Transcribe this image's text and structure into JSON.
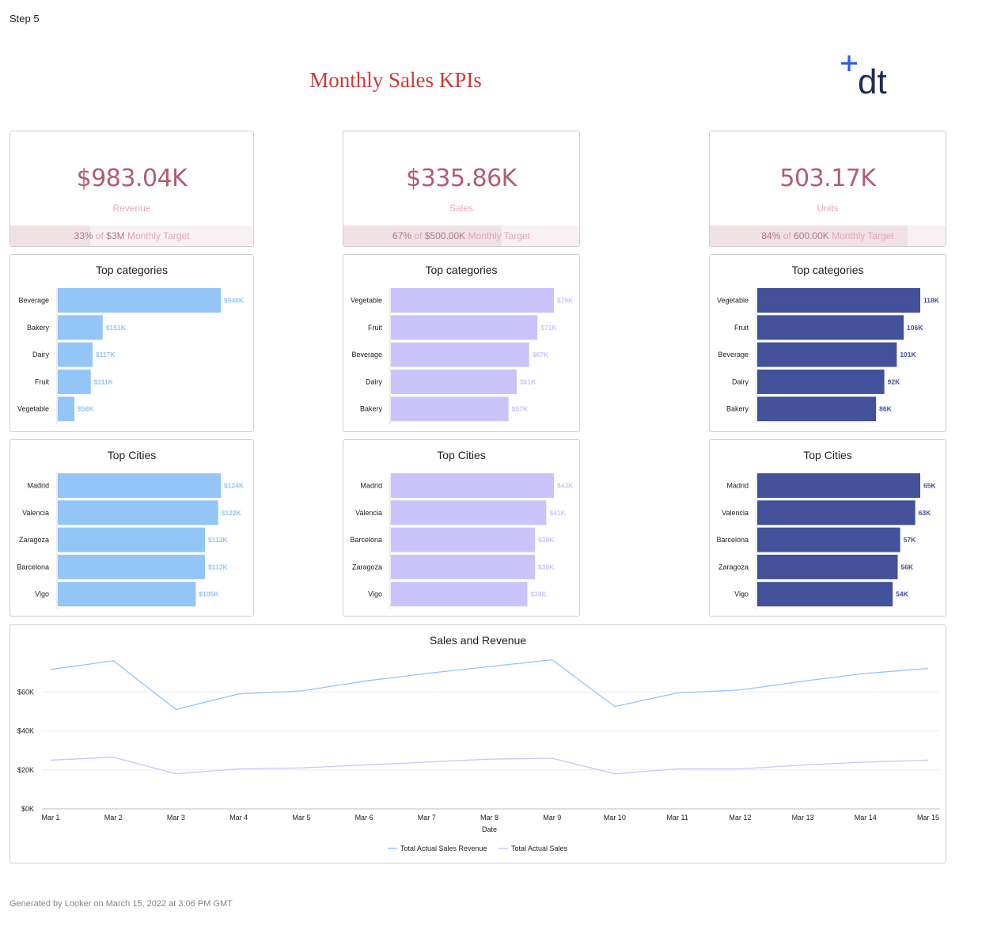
{
  "step": "Step 5",
  "title": "Monthly Sales KPIs",
  "logo_text": "dt",
  "colors": {
    "revenue": "#94c5f7",
    "sales": "#cbc4fb",
    "units": "#43519a",
    "kpi_value": "#b05d72",
    "title": "#cc3b3b"
  },
  "kpis": [
    {
      "value": "$983.04K",
      "label": "Revenue",
      "pct": "33%",
      "of": "of",
      "target": "$3M",
      "suffix": "Monthly Target",
      "fill": 0.33
    },
    {
      "value": "$335.86K",
      "label": "Sales",
      "pct": "67%",
      "of": "of",
      "target": "$500.00K",
      "suffix": "Monthly Target",
      "fill": 0.67
    },
    {
      "value": "503.17K",
      "label": "Units",
      "pct": "84%",
      "of": "of",
      "target": "600.00K",
      "suffix": "Monthly Target",
      "fill": 0.84
    }
  ],
  "chart_data": [
    {
      "type": "bar",
      "title": "Top categories",
      "color": "#94c5f7",
      "label_color": "#94c5f7",
      "categories": [
        "Beverage",
        "Bakery",
        "Dairy",
        "Fruit",
        "Vegetable"
      ],
      "values": [
        548,
        151,
        117,
        111,
        56
      ],
      "labels": [
        "$548K",
        "$151K",
        "$117K",
        "$111K",
        "$56K"
      ],
      "xlim": [
        0,
        548
      ]
    },
    {
      "type": "bar",
      "title": "Top categories",
      "color": "#cbc4fb",
      "label_color": "#cbc4fb",
      "categories": [
        "Vegetable",
        "Fruit",
        "Beverage",
        "Dairy",
        "Bakery"
      ],
      "values": [
        79,
        71,
        67,
        61,
        57
      ],
      "labels": [
        "$79K",
        "$71K",
        "$67K",
        "$61K",
        "$57K"
      ],
      "xlim": [
        0,
        79
      ]
    },
    {
      "type": "bar",
      "title": "Top categories",
      "color": "#43519a",
      "label_color": "#43519a",
      "categories": [
        "Vegetable",
        "Fruit",
        "Beverage",
        "Dairy",
        "Bakery"
      ],
      "values": [
        118,
        106,
        101,
        92,
        86
      ],
      "labels": [
        "118K",
        "106K",
        "101K",
        "92K",
        "86K"
      ],
      "xlim": [
        0,
        118
      ]
    },
    {
      "type": "bar",
      "title": "Top Cities",
      "color": "#94c5f7",
      "label_color": "#94c5f7",
      "categories": [
        "Madrid",
        "Valencia",
        "Zaragoza",
        "Barcelona",
        "Vigo"
      ],
      "values": [
        124,
        122,
        112,
        112,
        105
      ],
      "labels": [
        "$124K",
        "$122K",
        "$112K",
        "$112K",
        "$105K"
      ],
      "xlim": [
        0,
        124
      ]
    },
    {
      "type": "bar",
      "title": "Top Cities",
      "color": "#cbc4fb",
      "label_color": "#cbc4fb",
      "categories": [
        "Madrid",
        "Valencia",
        "Barcelona",
        "Zaragoza",
        "Vigo"
      ],
      "values": [
        43,
        41,
        38,
        38,
        36
      ],
      "labels": [
        "$43K",
        "$41K",
        "$38K",
        "$38K",
        "$36K"
      ],
      "xlim": [
        0,
        43
      ]
    },
    {
      "type": "bar",
      "title": "Top Cities",
      "color": "#43519a",
      "label_color": "#43519a",
      "categories": [
        "Madrid",
        "Valencia",
        "Barcelona",
        "Zaragoza",
        "Vigo"
      ],
      "values": [
        65,
        63,
        57,
        56,
        54
      ],
      "labels": [
        "65K",
        "63K",
        "57K",
        "56K",
        "54K"
      ],
      "xlim": [
        0,
        65
      ]
    },
    {
      "type": "line",
      "title": "Sales and Revenue",
      "xlabel": "Date",
      "ylabel": "",
      "x": [
        "Mar 1",
        "Mar 2",
        "Mar 3",
        "Mar 4",
        "Mar 5",
        "Mar 6",
        "Mar 7",
        "Mar 8",
        "Mar 9",
        "Mar 10",
        "Mar 11",
        "Mar 12",
        "Mar 13",
        "Mar 14",
        "Mar 15"
      ],
      "yticks": [
        "$0K",
        "$20K",
        "$40K",
        "$60K"
      ],
      "ylim": [
        0,
        80000
      ],
      "grid": true,
      "legend": "bottom",
      "series": [
        {
          "name": "Total Actual Sales Revenue",
          "color": "#94c5f7",
          "values": [
            71500,
            76000,
            51000,
            59000,
            60500,
            65500,
            69500,
            73000,
            76500,
            52500,
            59500,
            61000,
            65500,
            69500,
            72000
          ]
        },
        {
          "name": "Total Actual Sales",
          "color": "#cbc4fb",
          "values": [
            25000,
            26500,
            18000,
            20500,
            21000,
            22500,
            24000,
            25500,
            26000,
            18000,
            20500,
            20500,
            22500,
            24000,
            25000
          ]
        }
      ]
    }
  ],
  "footer": "Generated by Looker on March 15, 2022 at 3:06 PM GMT"
}
